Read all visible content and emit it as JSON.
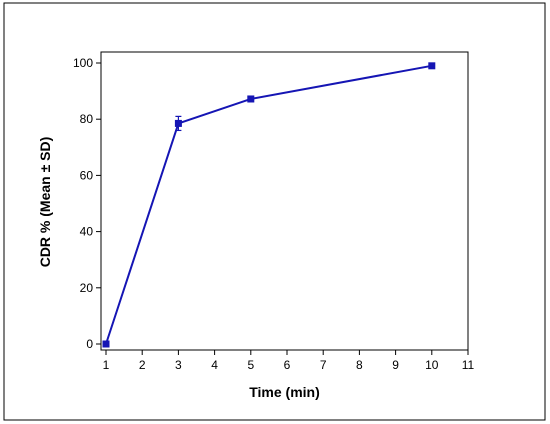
{
  "chart_data": {
    "type": "line",
    "xlabel": "Time (min)",
    "ylabel": "CDR % (Mean ± SD)",
    "xlim": [
      1,
      11
    ],
    "ylim": [
      0,
      100
    ],
    "x_ticks": [
      1,
      2,
      3,
      4,
      5,
      6,
      7,
      8,
      9,
      10,
      11
    ],
    "y_ticks": [
      0,
      20,
      40,
      60,
      80,
      100
    ],
    "grid": false,
    "series": [
      {
        "x": [
          1,
          3,
          5,
          10
        ],
        "y": [
          0,
          78.5,
          87.2,
          99
        ],
        "sd": [
          0,
          2.5,
          1.0,
          0.6
        ]
      }
    ],
    "colors": {
      "series": "#1515b4",
      "axes": "#000000",
      "frame": "#000000"
    }
  }
}
